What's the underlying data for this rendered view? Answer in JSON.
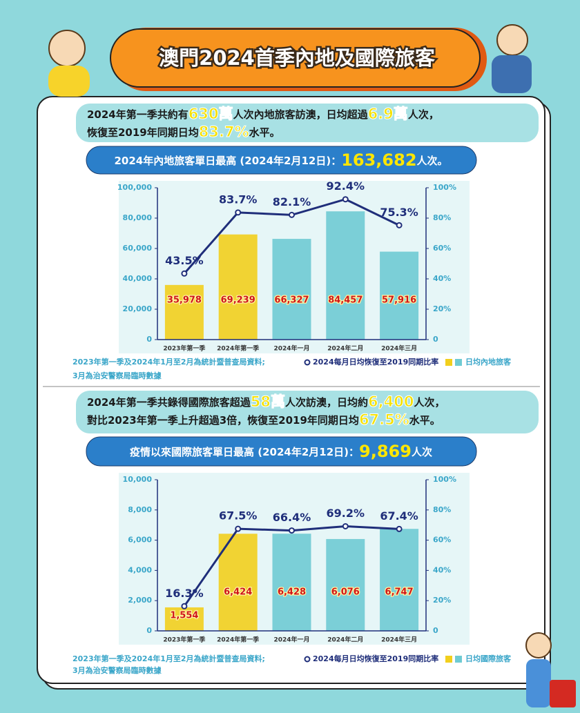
{
  "title": "澳門2024首季內地及國際旅客",
  "sections": [
    {
      "summary": [
        [
          "2024年第一季共約有",
          "630萬",
          "人次內地旅客訪澳，日均超過",
          "6.9萬",
          "人次，"
        ],
        [
          "恢復至2019年同期日均",
          "83.7%",
          "水平。"
        ]
      ],
      "record": [
        "2024年內地旅客單日最高 (2024年2月12日)：",
        "163,682",
        "人次。"
      ],
      "source": [
        "2023年第一季及2024年1月至2月為統計暨普查局資料;",
        "3月為治安警察局臨時數據"
      ]
    },
    {
      "summary": [
        [
          "2024年第一季共錄得國際旅客超過",
          "58萬",
          "人次訪澳，日均約",
          "6,400",
          "人次，"
        ],
        [
          "對比2023年第一季上升超過3倍，恢復至2019年同期日均",
          "67.5%",
          "水平。"
        ]
      ],
      "record": [
        "疫情以來國際旅客單日最高 (2024年2月12日)：",
        "9,869",
        "人次"
      ],
      "source": [
        "2023年第一季及2024年1月至2月為統計暨普查局資料;",
        "3月為治安警察局臨時數據"
      ]
    }
  ],
  "chart_data": [
    {
      "type": "bar",
      "categories": [
        "2023年第一季",
        "2024年第一季",
        "2024年一月",
        "2024年二月",
        "2024年三月"
      ],
      "series": [
        {
          "name": "日均內地旅客",
          "colors": [
            "#f2cf1d",
            "#f2cf1d",
            "#6fcbd3",
            "#6fcbd3",
            "#6fcbd3"
          ],
          "values": [
            35978,
            69239,
            66327,
            84457,
            57916
          ],
          "value_labels": [
            "35,978",
            "69,239",
            "66,327",
            "84,457",
            "57,916"
          ]
        },
        {
          "name": "2024每月日均恢復至2019同期比率",
          "color": "#1f2e7a",
          "axis": "y2",
          "values": [
            43.5,
            83.7,
            82.1,
            92.4,
            75.3
          ],
          "value_labels": [
            "43.5%",
            "83.7%",
            "82.1%",
            "92.4%",
            "75.3%"
          ]
        }
      ],
      "ylim": [
        0,
        100000
      ],
      "yticks": [
        0,
        {
          "value": 20000,
          "label": "20,000"
        },
        {
          "value": 40000,
          "label": "40,000"
        },
        {
          "value": 60000,
          "label": "60,000"
        },
        {
          "value": 80000,
          "label": "80,000"
        },
        {
          "value": 100000,
          "label": "100,000"
        }
      ],
      "y2lim": [
        0,
        100
      ],
      "y2ticks": [
        0,
        {
          "value": 20,
          "label": "20%"
        },
        {
          "value": 40,
          "label": "40%"
        },
        {
          "value": 60,
          "label": "60%"
        },
        {
          "value": 80,
          "label": "80%"
        },
        {
          "value": 100,
          "label": "100%"
        }
      ]
    },
    {
      "type": "bar",
      "categories": [
        "2023年第一季",
        "2024年第一季",
        "2024年一月",
        "2024年二月",
        "2024年三月"
      ],
      "series": [
        {
          "name": "日均國際旅客",
          "colors": [
            "#f2cf1d",
            "#f2cf1d",
            "#6fcbd3",
            "#6fcbd3",
            "#6fcbd3"
          ],
          "values": [
            1554,
            6424,
            6428,
            6076,
            6747
          ],
          "value_labels": [
            "1,554",
            "6,424",
            "6,428",
            "6,076",
            "6,747"
          ]
        },
        {
          "name": "2024每月日均恢復至2019同期比率",
          "color": "#1f2e7a",
          "axis": "y2",
          "values": [
            16.3,
            67.5,
            66.4,
            69.2,
            67.4
          ],
          "value_labels": [
            "16.3%",
            "67.5%",
            "66.4%",
            "69.2%",
            "67.4%"
          ]
        }
      ],
      "ylim": [
        0,
        10000
      ],
      "yticks": [
        0,
        {
          "value": 2000,
          "label": "2,000"
        },
        {
          "value": 4000,
          "label": "4,000"
        },
        {
          "value": 6000,
          "label": "6,000"
        },
        {
          "value": 8000,
          "label": "8,000"
        },
        {
          "value": 10000,
          "label": "10,000"
        }
      ],
      "y2lim": [
        0,
        100
      ],
      "y2ticks": [
        0,
        {
          "value": 20,
          "label": "20%"
        },
        {
          "value": 40,
          "label": "40%"
        },
        {
          "value": 60,
          "label": "60%"
        },
        {
          "value": 80,
          "label": "80%"
        },
        {
          "value": 100,
          "label": "100%"
        }
      ]
    }
  ]
}
